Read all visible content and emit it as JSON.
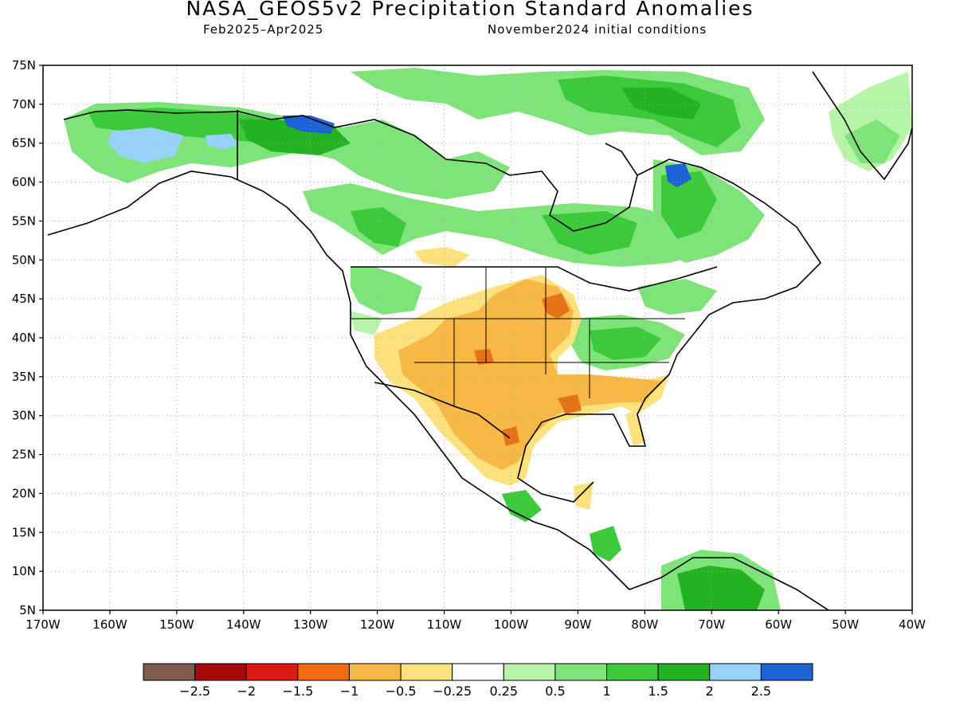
{
  "title": "NASA_GEOS5v2 Precipitation Standard Anomalies",
  "subtitle_left": "Feb2025–Apr2025",
  "subtitle_right": "November2024 initial conditions",
  "map": {
    "lon_ticks": [
      "170W",
      "160W",
      "150W",
      "140W",
      "130W",
      "120W",
      "110W",
      "100W",
      "90W",
      "80W",
      "70W",
      "60W",
      "50W",
      "40W"
    ],
    "lat_ticks": [
      "75N",
      "70N",
      "65N",
      "60N",
      "55N",
      "50N",
      "45N",
      "40N",
      "35N",
      "30N",
      "25N",
      "20N",
      "15N",
      "10N",
      "5N"
    ],
    "colors": {
      "dry_strong": "#e6721a",
      "dry": "#f7b944",
      "dry_weak": "#fbe07a",
      "wet_weak": "#b6f5a8",
      "wet": "#7ee47a",
      "wet_mid": "#3cc93c",
      "wet_strong": "#22b222",
      "wet_light_blue": "#96d2fa",
      "wet_blue": "#1d62d6"
    }
  },
  "colorbar": {
    "colors": [
      "#7f5a4e",
      "#a40808",
      "#dc1a12",
      "#f46a0e",
      "#f8b845",
      "#fde17c",
      "#ffffff",
      "#b6f5a8",
      "#7ee47a",
      "#3cc93c",
      "#22b222",
      "#96d2fa",
      "#1d62d6"
    ],
    "labels": [
      "−2.5",
      "−2",
      "−1.5",
      "−1",
      "−0.5",
      "−0.25",
      "0.25",
      "0.5",
      "1",
      "1.5",
      "2",
      "2.5"
    ]
  }
}
